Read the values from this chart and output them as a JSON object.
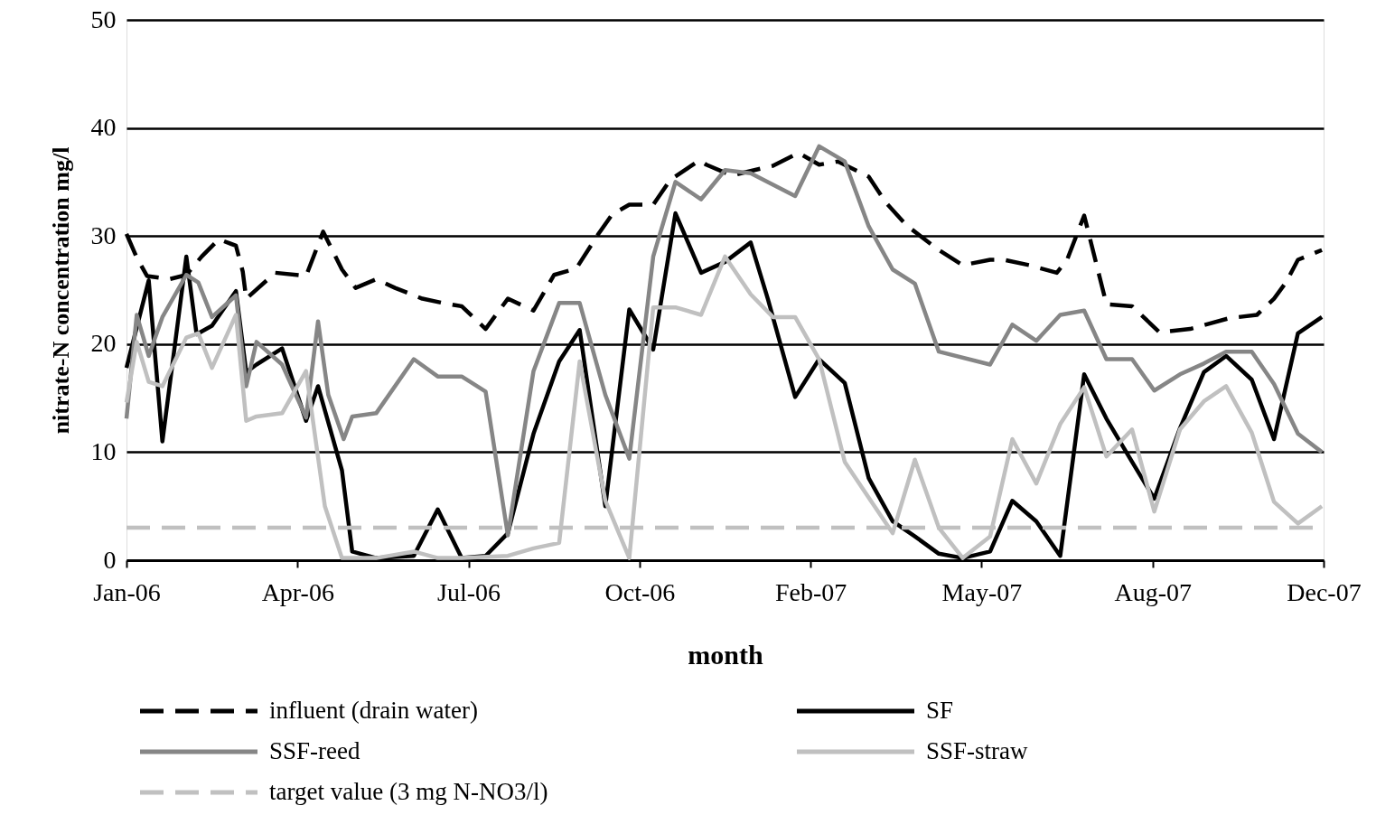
{
  "chart_data": {
    "type": "line",
    "xlabel": "month",
    "ylabel": "nitrate-N concentration mg/l",
    "xlim": [
      "2006-01-01",
      "2007-12-02"
    ],
    "xticks": [
      {
        "value": "2006-01-01",
        "label": "Jan-06"
      },
      {
        "value": "2006-04-11",
        "label": "Apr-06"
      },
      {
        "value": "2006-07-20",
        "label": "Jul-06"
      },
      {
        "value": "2006-10-28",
        "label": "Oct-06"
      },
      {
        "value": "2007-02-05",
        "label": "Feb-07"
      },
      {
        "value": "2007-05-16",
        "label": "May-07"
      },
      {
        "value": "2007-08-24",
        "label": "Aug-07"
      },
      {
        "value": "2007-12-02",
        "label": "Dec-07"
      }
    ],
    "ylim": [
      0,
      50
    ],
    "yticks": [
      0,
      10,
      20,
      30,
      40,
      50
    ],
    "grid": "y",
    "legend": "bottom",
    "series": [
      {
        "name": "influent (drain water)",
        "color": "#000000",
        "line_style": "dashed",
        "x": [
          "2006-01-01",
          "2006-01-07",
          "2006-01-13",
          "2006-01-26",
          "2006-02-05",
          "2006-02-14",
          "2006-02-24",
          "2006-03-06",
          "2006-03-10",
          "2006-03-12",
          "2006-03-29",
          "2006-04-16",
          "2006-04-26",
          "2006-05-07",
          "2006-05-15",
          "2006-05-27",
          "2006-06-07",
          "2006-06-23",
          "2006-07-05",
          "2006-07-16",
          "2006-07-30",
          "2006-08-12",
          "2006-08-27",
          "2006-09-08",
          "2006-09-21",
          "2006-10-04",
          "2006-10-12",
          "2006-10-22",
          "2006-11-05",
          "2006-11-15",
          "2006-12-02",
          "2006-12-06",
          "2006-12-21",
          "2007-01-14",
          "2007-01-29",
          "2007-02-10",
          "2007-02-21",
          "2007-03-11",
          "2007-03-21",
          "2007-04-02",
          "2007-04-21",
          "2007-05-05",
          "2007-05-21",
          "2007-05-29",
          "2007-06-13",
          "2007-06-29",
          "2007-07-05",
          "2007-07-15",
          "2007-07-28",
          "2007-08-12",
          "2007-08-28",
          "2007-09-15",
          "2007-10-08",
          "2007-10-24",
          "2007-11-03",
          "2007-11-10",
          "2007-11-17",
          "2007-12-01"
        ],
        "values": [
          30.2,
          28.0,
          26.3,
          26.0,
          26.4,
          28.1,
          29.7,
          29.1,
          26.7,
          24.2,
          26.6,
          26.3,
          30.4,
          26.9,
          25.2,
          26.0,
          25.2,
          24.2,
          23.8,
          23.5,
          21.4,
          24.2,
          23.1,
          26.4,
          27.0,
          30.2,
          32.0,
          32.9,
          32.9,
          35.2,
          37.0,
          36.6,
          35.6,
          36.5,
          37.7,
          36.6,
          36.9,
          35.5,
          33.1,
          31.0,
          28.7,
          27.3,
          27.8,
          27.8,
          27.3,
          26.6,
          27.8,
          31.9,
          23.7,
          23.5,
          21.1,
          21.4,
          22.4,
          22.7,
          24.2,
          25.7,
          27.8,
          28.7
        ]
      },
      {
        "name": "SF",
        "color": "#000000",
        "line_style": "solid",
        "x": [
          "2006-01-01",
          "2006-01-14",
          "2006-01-22",
          "2006-02-05",
          "2006-02-11",
          "2006-02-20",
          "2006-03-06",
          "2006-03-12",
          "2006-03-18",
          "2006-04-02",
          "2006-04-16",
          "2006-04-23",
          "2006-05-07",
          "2006-05-13",
          "2006-05-27",
          "2006-06-18",
          "2006-07-02",
          "2006-07-16",
          "2006-07-30",
          "2006-08-12",
          "2006-08-27",
          "2006-09-11",
          "2006-09-23",
          "2006-10-08",
          "2006-10-22",
          "2006-11-05",
          "2006-11-18",
          "2006-12-03",
          "2006-12-17",
          "2007-01-01",
          "2007-01-11",
          "2007-01-27",
          "2007-02-10",
          "2007-02-25",
          "2007-03-11",
          "2007-03-25",
          "2007-04-07",
          "2007-04-21",
          "2007-05-05",
          "2007-05-21",
          "2007-06-03",
          "2007-06-17",
          "2007-07-01",
          "2007-07-15",
          "2007-07-28",
          "2007-08-12",
          "2007-08-25",
          "2007-09-09",
          "2007-09-23",
          "2007-10-06",
          "2007-10-21",
          "2007-11-03",
          "2007-11-17",
          "2007-12-01"
        ],
        "values": [
          17.8,
          25.9,
          11.0,
          28.1,
          20.9,
          21.7,
          24.9,
          17.4,
          18.1,
          19.6,
          12.9,
          16.1,
          8.3,
          0.8,
          0.2,
          0.4,
          4.7,
          0.2,
          0.4,
          2.5,
          11.7,
          18.4,
          21.3,
          5.0,
          23.2,
          19.5,
          32.1,
          26.6,
          27.6,
          29.4,
          24.2,
          15.1,
          18.6,
          16.4,
          7.6,
          3.6,
          2.2,
          0.6,
          0.2,
          0.8,
          5.5,
          3.6,
          0.4,
          17.2,
          13.1,
          9.1,
          5.7,
          12.2,
          17.4,
          18.9,
          16.7,
          11.2,
          21.0,
          22.5
        ]
      },
      {
        "name": "SSF-reed",
        "color": "#868686",
        "line_style": "solid",
        "x": [
          "2006-01-01",
          "2006-01-07",
          "2006-01-14",
          "2006-01-22",
          "2006-02-05",
          "2006-02-12",
          "2006-02-20",
          "2006-03-06",
          "2006-03-12",
          "2006-03-18",
          "2006-04-02",
          "2006-04-16",
          "2006-04-23",
          "2006-04-29",
          "2006-05-08",
          "2006-05-13",
          "2006-05-27",
          "2006-06-18",
          "2006-07-02",
          "2006-07-16",
          "2006-07-30",
          "2006-08-12",
          "2006-08-27",
          "2006-09-11",
          "2006-09-23",
          "2006-10-08",
          "2006-10-22",
          "2006-11-05",
          "2006-11-18",
          "2006-12-03",
          "2006-12-17",
          "2007-01-01",
          "2007-01-27",
          "2007-02-10",
          "2007-02-25",
          "2007-03-11",
          "2007-03-25",
          "2007-04-07",
          "2007-04-21",
          "2007-05-21",
          "2007-06-03",
          "2007-06-17",
          "2007-07-01",
          "2007-07-15",
          "2007-07-28",
          "2007-08-12",
          "2007-08-25",
          "2007-09-09",
          "2007-09-23",
          "2007-10-06",
          "2007-10-21",
          "2007-11-03",
          "2007-11-17",
          "2007-12-01"
        ],
        "values": [
          13.1,
          22.7,
          18.9,
          22.5,
          26.4,
          25.7,
          22.5,
          24.5,
          16.1,
          20.2,
          18.1,
          13.2,
          22.1,
          15.3,
          11.2,
          13.3,
          13.6,
          18.6,
          17.0,
          17.0,
          15.6,
          2.3,
          17.5,
          23.8,
          23.8,
          15.3,
          9.4,
          28.1,
          35.0,
          33.4,
          36.1,
          35.8,
          33.7,
          38.3,
          36.9,
          30.9,
          26.9,
          25.6,
          19.3,
          18.1,
          21.8,
          20.3,
          22.7,
          23.1,
          18.6,
          18.6,
          15.7,
          17.2,
          18.2,
          19.3,
          19.3,
          16.3,
          11.7,
          10.0
        ]
      },
      {
        "name": "SSF-straw",
        "color": "#c0c0c0",
        "line_style": "solid",
        "x": [
          "2006-01-01",
          "2006-01-07",
          "2006-01-14",
          "2006-01-22",
          "2006-02-05",
          "2006-02-12",
          "2006-02-20",
          "2006-03-06",
          "2006-03-12",
          "2006-03-18",
          "2006-04-02",
          "2006-04-16",
          "2006-04-27",
          "2006-05-07",
          "2006-05-27",
          "2006-06-18",
          "2006-07-02",
          "2006-07-16",
          "2006-08-12",
          "2006-08-27",
          "2006-09-11",
          "2006-09-23",
          "2006-10-08",
          "2006-10-22",
          "2006-11-05",
          "2006-11-18",
          "2006-12-03",
          "2006-12-17",
          "2007-01-01",
          "2007-01-14",
          "2007-01-27",
          "2007-02-10",
          "2007-02-25",
          "2007-03-11",
          "2007-03-25",
          "2007-04-07",
          "2007-04-21",
          "2007-05-05",
          "2007-05-21",
          "2007-06-03",
          "2007-06-17",
          "2007-07-01",
          "2007-07-15",
          "2007-07-28",
          "2007-08-12",
          "2007-08-25",
          "2007-09-09",
          "2007-09-23",
          "2007-10-06",
          "2007-10-21",
          "2007-11-03",
          "2007-11-17",
          "2007-12-01"
        ],
        "values": [
          14.6,
          20.2,
          16.5,
          16.1,
          20.6,
          21.0,
          17.8,
          22.7,
          12.9,
          13.3,
          13.6,
          17.5,
          5.0,
          0.2,
          0.2,
          0.8,
          0.2,
          0.2,
          0.4,
          1.1,
          1.6,
          18.4,
          5.5,
          0.2,
          23.4,
          23.4,
          22.7,
          28.1,
          24.6,
          22.5,
          22.5,
          18.6,
          9.1,
          5.8,
          2.5,
          9.3,
          3.0,
          0.2,
          2.2,
          11.2,
          7.1,
          12.6,
          16.0,
          9.6,
          12.1,
          4.5,
          12.1,
          14.7,
          16.1,
          11.8,
          5.4,
          3.4,
          5.0
        ]
      },
      {
        "name": "target value (3 mg N-NO3/l)",
        "color": "#c0c0c0",
        "line_style": "dashed",
        "x": [
          "2006-01-01",
          "2007-12-02"
        ],
        "values": [
          3,
          3
        ]
      }
    ]
  }
}
